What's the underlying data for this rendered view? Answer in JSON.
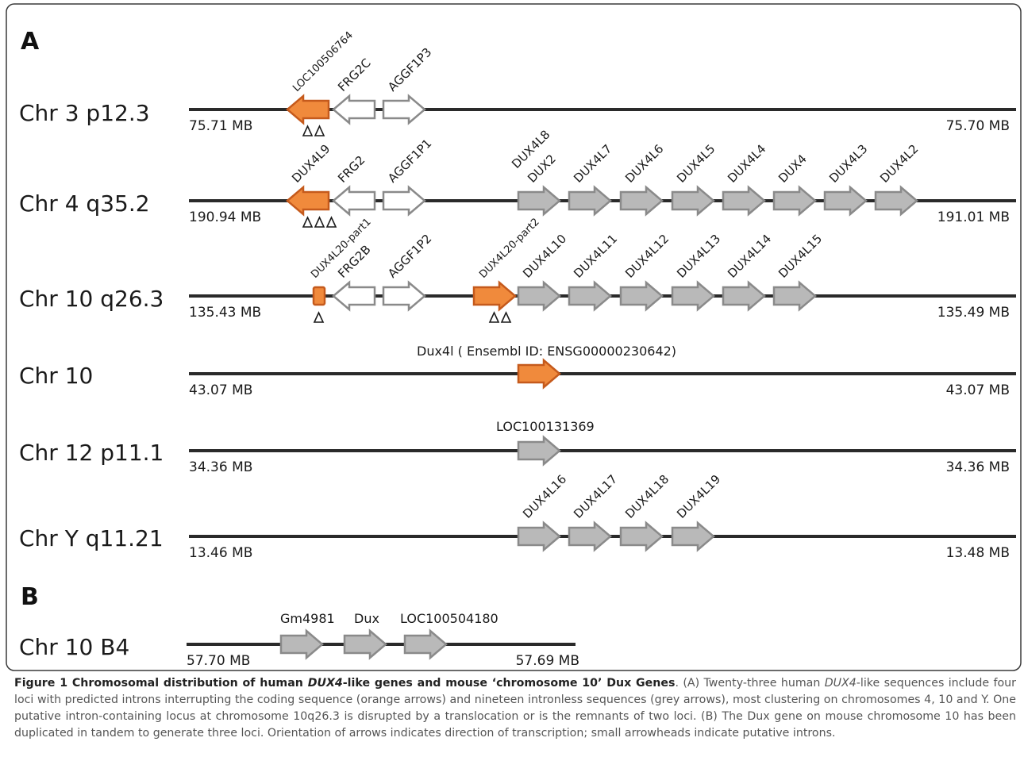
{
  "panels": {
    "a": "A",
    "b": "B"
  },
  "colors": {
    "intron_fill": "#f08a3c",
    "intron_stroke": "#c55a1c",
    "grey_fill": "#b9b9b9",
    "grey_stroke": "#8a8a8a",
    "white_fill": "#ffffff",
    "white_stroke": "#8a8a8a",
    "line": "#2a2a2a"
  },
  "rows": [
    {
      "label": "Chr 3   p12.3",
      "start": "75.71 MB",
      "end": "75.70 MB",
      "genes": [
        {
          "name": "LOC100506764",
          "style": "intron",
          "dir": "left",
          "introns": 2
        },
        {
          "name": "FRG2C",
          "style": "white",
          "dir": "left"
        },
        {
          "name": "AGGF1P3",
          "style": "white",
          "dir": "right"
        }
      ]
    },
    {
      "label": "Chr 4   q35.2",
      "start": "190.94 MB",
      "end": "191.01 MB",
      "genes": [
        {
          "name": "DUX4L9",
          "style": "intron",
          "dir": "left",
          "introns": 3
        },
        {
          "name": "FRG2",
          "style": "white",
          "dir": "left"
        },
        {
          "name": "AGGF1P1",
          "style": "white",
          "dir": "right"
        },
        {
          "name": "DUX4L8",
          "name2": "DUX2",
          "style": "grey",
          "dir": "right"
        },
        {
          "name": "DUX4L7",
          "style": "grey",
          "dir": "right"
        },
        {
          "name": "DUX4L6",
          "style": "grey",
          "dir": "right"
        },
        {
          "name": "DUX4L5",
          "style": "grey",
          "dir": "right"
        },
        {
          "name": "DUX4L4",
          "style": "grey",
          "dir": "right"
        },
        {
          "name": "DUX4",
          "style": "grey",
          "dir": "right"
        },
        {
          "name": "DUX4L3",
          "style": "grey",
          "dir": "right"
        },
        {
          "name": "DUX4L2",
          "style": "grey",
          "dir": "right"
        }
      ]
    },
    {
      "label": "Chr 10 q26.3",
      "start": "135.43 MB",
      "end": "135.49 MB",
      "genes": [
        {
          "name": "DUX4L20-part1",
          "style": "intron",
          "dir": "stub",
          "introns": 1
        },
        {
          "name": "FRG2B",
          "style": "white",
          "dir": "left"
        },
        {
          "name": "AGGF1P2",
          "style": "white",
          "dir": "right"
        },
        {
          "name": "DUX4L20-part2",
          "style": "intron",
          "dir": "right",
          "introns": 2
        },
        {
          "name": "DUX4L10",
          "style": "grey",
          "dir": "right"
        },
        {
          "name": "DUX4L11",
          "style": "grey",
          "dir": "right"
        },
        {
          "name": "DUX4L12",
          "style": "grey",
          "dir": "right"
        },
        {
          "name": "DUX4L13",
          "style": "grey",
          "dir": "right"
        },
        {
          "name": "DUX4L14",
          "style": "grey",
          "dir": "right"
        },
        {
          "name": "DUX4L15",
          "style": "grey",
          "dir": "right"
        }
      ]
    },
    {
      "label": "Chr 10",
      "start": "43.07 MB",
      "end": "43.07 MB",
      "genes": [
        {
          "name": "Dux4l ( Ensembl ID: ENSG00000230642)",
          "style": "intron",
          "dir": "right",
          "horizontal": true
        }
      ]
    },
    {
      "label": "Chr 12 p11.1",
      "start": "34.36 MB",
      "end": "34.36 MB",
      "genes": [
        {
          "name": "LOC100131369",
          "style": "grey",
          "dir": "right",
          "horizontal": true
        }
      ]
    },
    {
      "label": "Chr  Y q11.21",
      "start": "13.46 MB",
      "end": "13.48 MB",
      "genes": [
        {
          "name": "DUX4L16",
          "style": "grey",
          "dir": "right"
        },
        {
          "name": "DUX4L17",
          "style": "grey",
          "dir": "right"
        },
        {
          "name": "DUX4L18",
          "style": "grey",
          "dir": "right"
        },
        {
          "name": "DUX4L19",
          "style": "grey",
          "dir": "right"
        }
      ]
    },
    {
      "label": "Chr 10 B4",
      "start": "57.70 MB",
      "end": "57.69 MB",
      "genes": [
        {
          "name": "Gm4981",
          "style": "grey",
          "dir": "right",
          "horizontal": true
        },
        {
          "name": "Dux",
          "style": "grey",
          "dir": "right",
          "horizontal": true
        },
        {
          "name": "LOC100504180",
          "style": "grey",
          "dir": "right",
          "horizontal": true
        }
      ]
    }
  ],
  "caption": {
    "title_a": "Figure 1 Chromosomal distribution of human ",
    "title_b": "DUX4",
    "title_c": "-like genes and mouse ‘chromosome 10’ Dux Genes",
    "t1": ". (A) Twenty-three human ",
    "t2": "DUX4",
    "t3": "-like sequences include four loci with predicted introns interrupting the coding sequence (orange arrows) and nineteen intronless sequences (grey arrows), most clustering on chromosomes 4, 10 and Y. One putative intron-containing locus at chromosome 10q26.3 is disrupted by a translocation or is the remnants of two loci. (B) The Dux gene on mouse chromosome 10 has been duplicated in tandem to generate three loci. Orientation of arrows indicates direction of transcription; small arrowheads indicate putative introns."
  }
}
